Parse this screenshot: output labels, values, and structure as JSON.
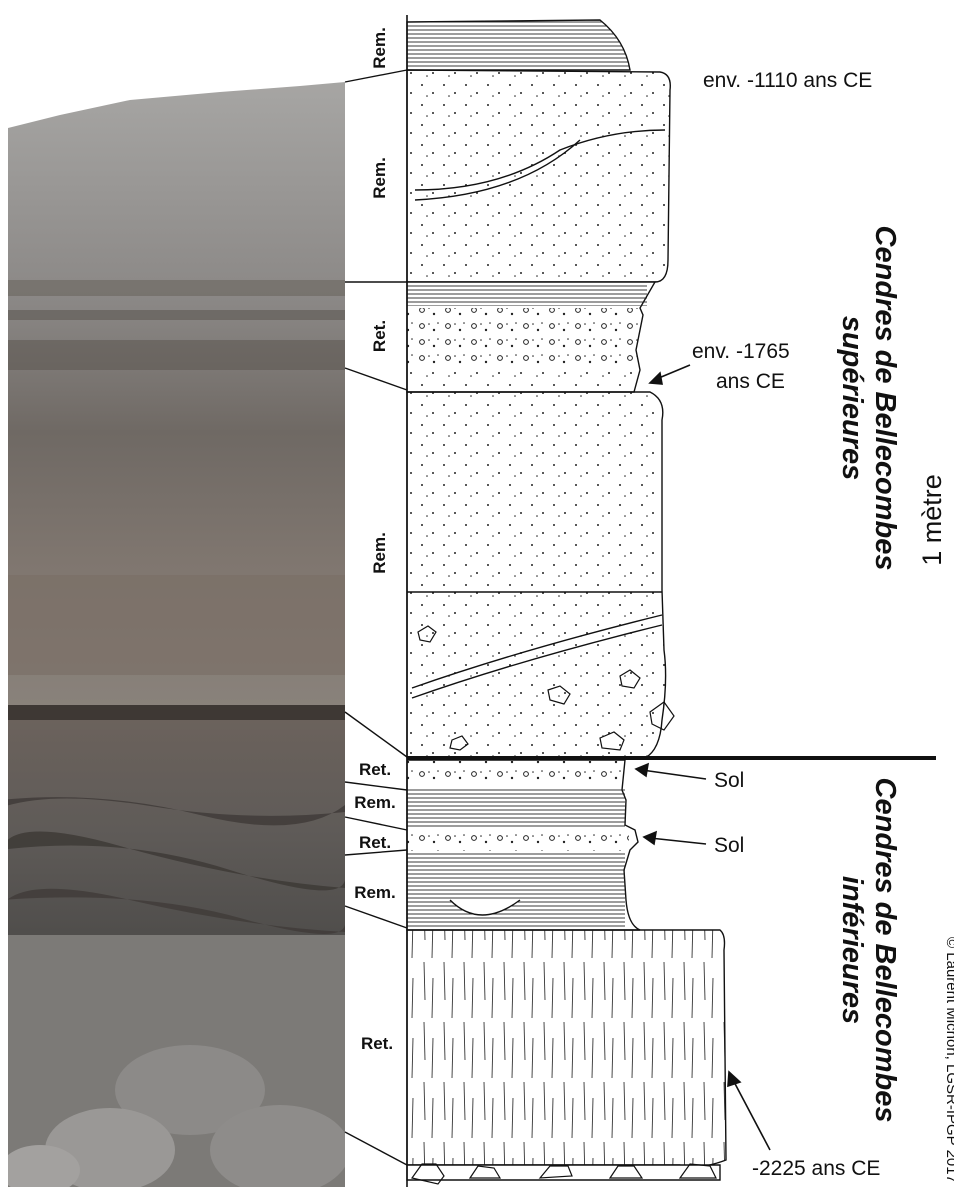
{
  "photo": {
    "description_icon": "outcrop-photo"
  },
  "units": {
    "rem_1": "Rem.",
    "rem_2": "Rem.",
    "ret_1": "Ret.",
    "rem_3": "Rem.",
    "ret_2": "Ret.",
    "rem_4": "Rem.",
    "ret_3": "Ret.",
    "rem_5": "Rem.",
    "ret_4": "Ret."
  },
  "annotations": {
    "age_1110": "env. -1110 ans CE",
    "age_1765_line1": "env. -1765",
    "age_1765_line2": "ans CE",
    "sol_1": "Sol",
    "sol_2": "Sol",
    "age_2225": "-2225 ans CE"
  },
  "titles": {
    "upper_line1": "Cendres de Bellecombes",
    "upper_line2": "supérieures",
    "lower_line1": "Cendres de Bellecombes",
    "lower_line2": "inférieures"
  },
  "scale_label": "1 mètre",
  "credit": "© Laurent Michon, LGSR-IPGP 2017",
  "colors": {
    "ink": "#111111",
    "photo_upper": "#8f8b86",
    "photo_lower": "#6e6a66",
    "paper": "#ffffff"
  }
}
